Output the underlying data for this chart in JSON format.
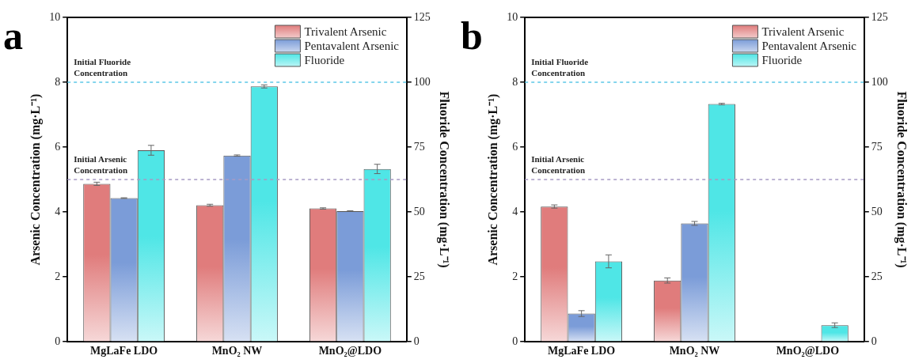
{
  "chart_data": [
    {
      "type": "bar",
      "title": "a",
      "categories": [
        "MgLaFe LDO",
        "MnO₂ NW",
        "MnO₂@LDO"
      ],
      "series": [
        {
          "name": "Trivalent Arsenic",
          "color": "#e07c7c",
          "values": [
            4.87,
            4.21,
            4.11
          ],
          "errors": [
            0.05,
            0.03,
            0.02
          ]
        },
        {
          "name": "Pentavalent Arsenic",
          "color": "#7b9cd8",
          "values": [
            4.43,
            5.74,
            4.03
          ],
          "errors": [
            0.01,
            0.02,
            0.01
          ]
        },
        {
          "name": "Fluoride",
          "color": "#4fe6e6",
          "values": [
            73.8,
            98.4,
            66.6
          ],
          "errors": [
            1.9,
            0.6,
            1.8
          ],
          "axis": "y2"
        }
      ],
      "ylabel": "Arsenic Concentration (mg·L⁻¹)",
      "y2label": "Fluoride Concentration (mg·L⁻¹)",
      "ylim": [
        0,
        10
      ],
      "yticks": [
        0,
        2,
        4,
        6,
        8,
        10
      ],
      "y2lim": [
        0,
        125
      ],
      "y2ticks": [
        0,
        25,
        50,
        75,
        100,
        125
      ],
      "ref_lines": [
        {
          "axis": "y",
          "value": 8,
          "label": "Initial Fluoride Concentration",
          "color": "#5cc8e8",
          "line_style": "dashed"
        },
        {
          "axis": "y",
          "value": 5,
          "label": "Initial Arsenic Concentration",
          "color": "#a79ac4",
          "line_style": "dashed"
        }
      ],
      "legend": "top right",
      "grid": false
    },
    {
      "type": "bar",
      "title": "b",
      "categories": [
        "MgLaFe LDO",
        "MnO₂ NW",
        "MnO₂@LDO"
      ],
      "series": [
        {
          "name": "Trivalent Arsenic",
          "color": "#e07c7c",
          "values": [
            4.17,
            1.89,
            0
          ],
          "errors": [
            0.05,
            0.08,
            null
          ]
        },
        {
          "name": "Pentavalent Arsenic",
          "color": "#7b9cd8",
          "values": [
            0.87,
            3.65,
            null
          ],
          "errors": [
            0.09,
            0.06,
            null
          ]
        },
        {
          "name": "Fluoride",
          "color": "#4fe6e6",
          "values": [
            31,
            91.6,
            6.4
          ],
          "errors": [
            2.5,
            0.3,
            0.9
          ],
          "axis": "y2"
        }
      ],
      "ylabel": "Arsenic Concentration (mg·L⁻¹)",
      "y2label": "Fluoride Concentration (mg·L⁻¹)",
      "ylim": [
        0,
        10
      ],
      "yticks": [
        0,
        2,
        4,
        6,
        8,
        10
      ],
      "y2lim": [
        0,
        125
      ],
      "y2ticks": [
        0,
        25,
        50,
        75,
        100,
        125
      ],
      "ref_lines": [
        {
          "axis": "y",
          "value": 8,
          "label": "Initial Fluoride Concentration",
          "color": "#5cc8e8",
          "line_style": "dashed"
        },
        {
          "axis": "y",
          "value": 5,
          "label": "Initial Arsenic Concentration",
          "color": "#a79ac4",
          "line_style": "dashed"
        }
      ],
      "legend": "top right",
      "grid": false
    }
  ]
}
